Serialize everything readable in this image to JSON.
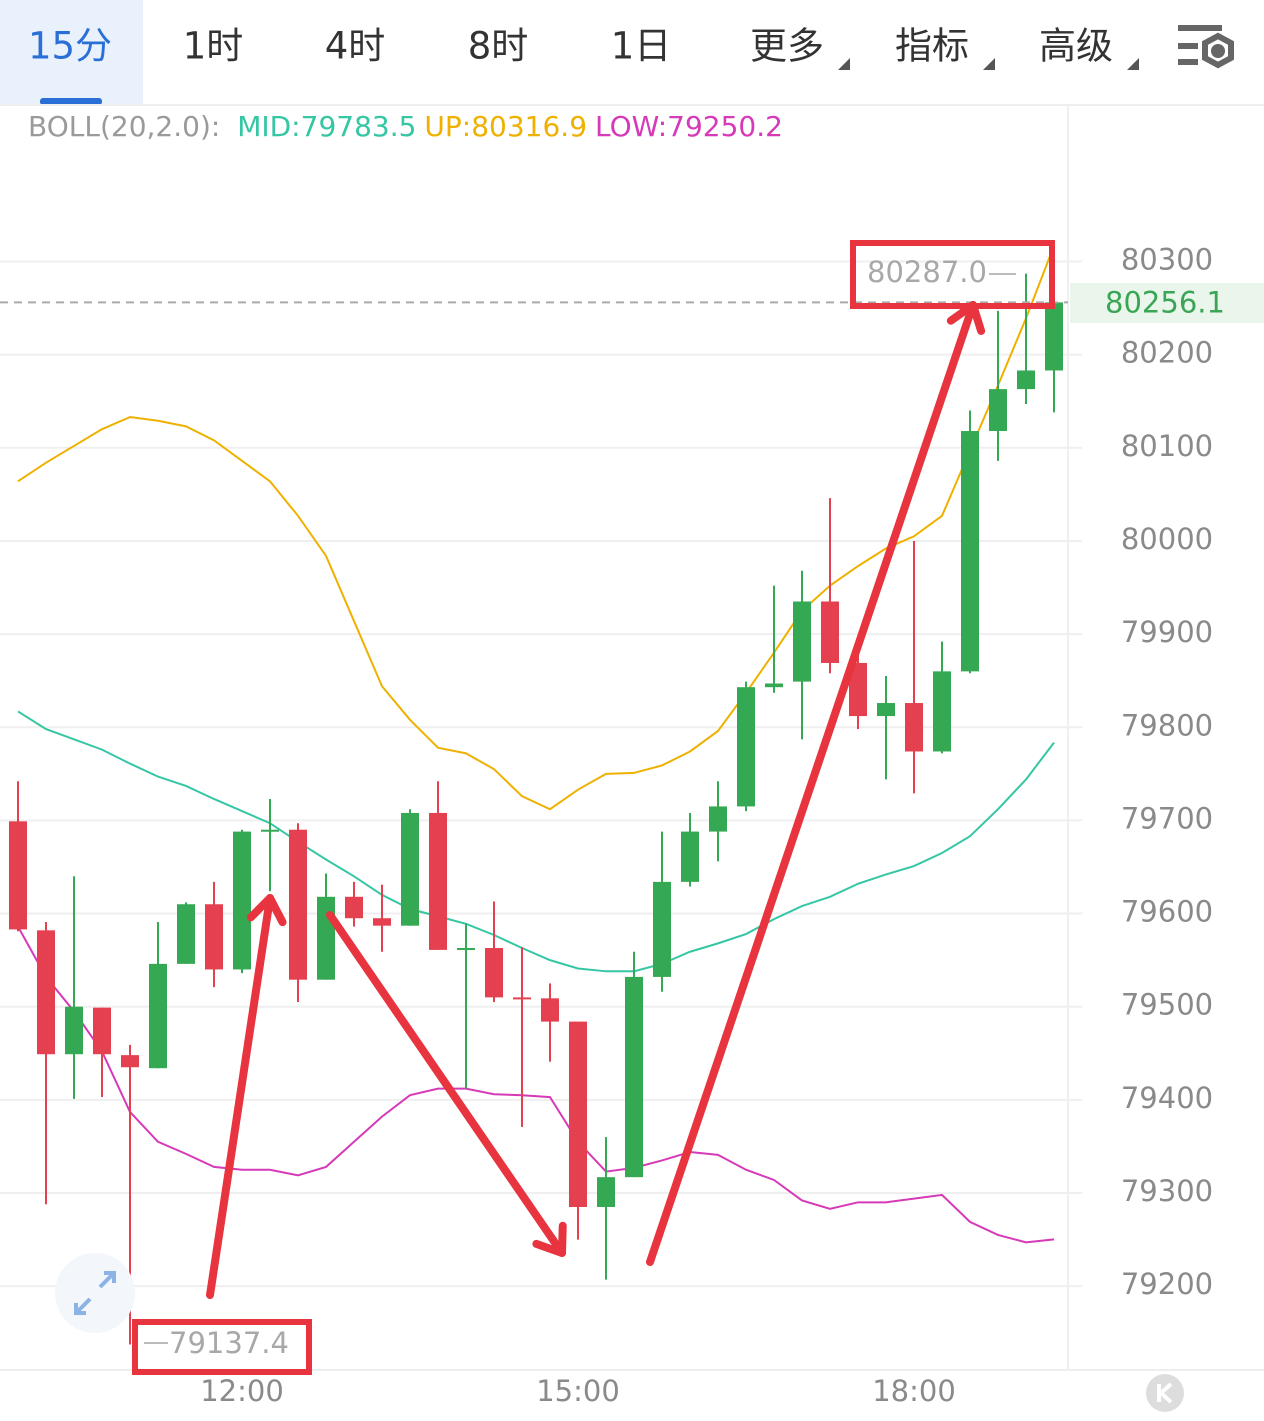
{
  "tabs": [
    "15分",
    "1时",
    "4时",
    "8时",
    "1日",
    "更多",
    "指标",
    "高级"
  ],
  "chart_data": {
    "type": "candlestick",
    "categories": [
      null,
      null,
      null,
      null,
      null,
      null,
      null,
      null,
      "12:00",
      null,
      null,
      null,
      null,
      null,
      null,
      null,
      null,
      null,
      null,
      null,
      "15:00",
      null,
      null,
      null,
      null,
      null,
      null,
      null,
      null,
      null,
      null,
      null,
      "18:00",
      null,
      null,
      null,
      null,
      null
    ],
    "open": [
      79699,
      79582,
      79449,
      79499,
      79448,
      79434,
      79546,
      79610,
      79540,
      79688,
      79690,
      79529,
      79618,
      79595,
      79587,
      79708,
      79561,
      79563,
      79510,
      79509,
      79484,
      79285,
      79317,
      79532,
      79634,
      79688,
      79715,
      79843,
      79849,
      79935,
      79869,
      79812,
      79826,
      79774,
      79860,
      80118,
      80163,
      80183
    ],
    "high": [
      79742,
      79591,
      79640,
      79499,
      79459,
      79591,
      79612,
      79634,
      79690,
      79723,
      79697,
      79643,
      79634,
      79631,
      79712,
      79742,
      79589,
      79613,
      79564,
      79525,
      79484,
      79360,
      79559,
      79688,
      79708,
      79742,
      79849,
      79952,
      79968,
      80046,
      79898,
      79855,
      80000,
      79892,
      80140,
      80247,
      80287.0,
      80256.1
    ],
    "low": [
      79581,
      79288,
      79401,
      79403,
      79137.4,
      79434,
      79546,
      79521,
      79536,
      79624,
      79505,
      79529,
      79586,
      79559,
      79587,
      79561,
      79412,
      79505,
      79371,
      79441,
      79250,
      79207,
      79317,
      79516,
      79629,
      79656,
      79710,
      79837,
      79787,
      79858,
      79798,
      79744,
      79729,
      79772,
      79858,
      80086,
      80147,
      80138
    ],
    "close": [
      79583,
      79449,
      79500,
      79449,
      79435,
      79546,
      79610,
      79540,
      79688,
      79690,
      79529,
      79618,
      79595,
      79587,
      79708,
      79561,
      79563,
      79510,
      79509,
      79484,
      79285,
      79317,
      79532,
      79634,
      79688,
      79715,
      79843,
      79847,
      79935,
      79869,
      79812,
      79826,
      79774,
      79860,
      80118,
      80163,
      80183,
      80256.1
    ],
    "up_color": "#34a853",
    "down_color": "#e5404f",
    "indicator": "BOLL(20,2.0):",
    "bollinger": [
      {
        "name": "MID:",
        "color": "#35c6a3",
        "values": [
          79817,
          79798,
          79787,
          79776,
          79761,
          79747,
          79737,
          79723,
          79710,
          79697,
          79677,
          79658,
          79640,
          79620,
          79605,
          79597,
          79589,
          79577,
          79563,
          79550,
          79541,
          79538,
          79538,
          79546,
          79559,
          79568,
          79578,
          79594,
          79608,
          79618,
          79632,
          79642,
          79651,
          79665,
          79683,
          79712,
          79744,
          79783.5
        ]
      },
      {
        "name": "UP:",
        "color": "#efb100",
        "values": [
          80064,
          80084,
          80102,
          80120,
          80133,
          80129,
          80123,
          80108,
          80086,
          80064,
          80027,
          79984,
          79914,
          79844,
          79808,
          79778,
          79772,
          79755,
          79726,
          79712,
          79733,
          79750,
          79751,
          79759,
          79774,
          79796,
          79837,
          79880,
          79925,
          79952,
          79973,
          79992,
          80005,
          80027,
          80097,
          80167,
          80239,
          80316.9
        ]
      },
      {
        "name": "LOW:",
        "color": "#d63ab8",
        "values": [
          79586,
          79532,
          79495,
          79452,
          79387,
          79355,
          79342,
          79328,
          79325,
          79325,
          79319,
          79328,
          79355,
          79382,
          79405,
          79412,
          79412,
          79406,
          79405,
          79403,
          79355,
          79323,
          79327,
          79335,
          79344,
          79341,
          79325,
          79314,
          79292,
          79283,
          79290,
          79290,
          79294,
          79298,
          79269,
          79255,
          79247,
          79250.2
        ]
      }
    ],
    "ylim": [
      79110,
      80468
    ],
    "yticks": [
      79200,
      79300,
      79400,
      79500,
      79600,
      79700,
      79800,
      79900,
      80000,
      80100,
      80200,
      80300
    ],
    "grid": true,
    "max_label": {
      "value": 80287.0,
      "label": "80287.0"
    },
    "min_label": 79137.4
  }
}
